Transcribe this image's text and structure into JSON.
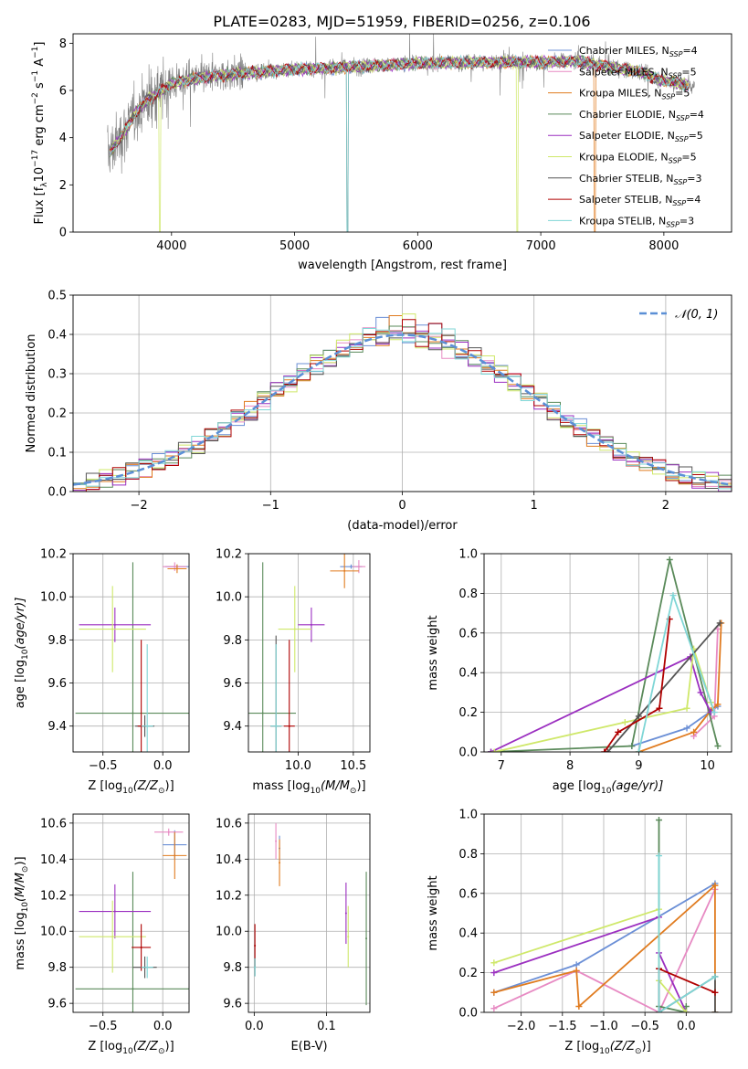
{
  "figure_title": "PLATE=0283, MJD=51959, FIBERID=0256, z=0.106",
  "colors": {
    "Chabrier MILES": "#6b8fd6",
    "Salpeter MILES": "#e78ac3",
    "Kroupa MILES": "#e07b1f",
    "Chabrier ELODIE": "#5a8a5a",
    "Salpeter ELODIE": "#9b2fc0",
    "Kroupa ELODIE": "#cfe86a",
    "Chabrier STELIB": "#555555",
    "Salpeter STELIB": "#b00000",
    "Kroupa STELIB": "#7fd6d6",
    "normal_curve": "#5b8fd6",
    "grid": "#b0b0b0"
  },
  "chart_data": [
    {
      "id": "spectrum",
      "type": "line",
      "xlabel": "wavelength [Angstrom, rest frame]",
      "ylabel": "Flux [f",
      "ylabel_sub": "λ",
      "ylabel_rest": "10",
      "ylabel_sup1": "−17",
      "ylabel_rest2": " erg cm",
      "ylabel_sup2": "−2",
      "ylabel_rest3": " s",
      "ylabel_sup3": "−1",
      "ylabel_rest4": " A",
      "ylabel_sup4": "−1",
      "ylabel_end": "]",
      "xlim": [
        3200,
        8550
      ],
      "ylim": [
        0,
        8.4
      ],
      "xticks": [
        "4000",
        "5000",
        "6000",
        "7000",
        "8000"
      ],
      "yticks": [
        "0",
        "2",
        "4",
        "6",
        "8"
      ],
      "legend_position": "top-right",
      "legend": [
        {
          "name": "Chabrier MILES, N",
          "sub": "SSP",
          "val": "=4"
        },
        {
          "name": "Salpeter MILES, N",
          "sub": "SSP",
          "val": "=5"
        },
        {
          "name": "Kroupa MILES, N",
          "sub": "SSP",
          "val": "=5"
        },
        {
          "name": "Chabrier ELODIE, N",
          "sub": "SSP",
          "val": "=4"
        },
        {
          "name": "Salpeter ELODIE, N",
          "sub": "SSP",
          "val": "=5"
        },
        {
          "name": "Kroupa ELODIE, N",
          "sub": "SSP",
          "val": "=5"
        },
        {
          "name": "Chabrier STELIB, N",
          "sub": "SSP",
          "val": "=3"
        },
        {
          "name": "Salpeter STELIB, N",
          "sub": "SSP",
          "val": "=4"
        },
        {
          "name": "Kroupa STELIB, N",
          "sub": "SSP",
          "val": "=3"
        }
      ],
      "continuum": [
        [
          3500,
          3.4
        ],
        [
          3600,
          4.1
        ],
        [
          3700,
          5.0
        ],
        [
          3800,
          5.6
        ],
        [
          3900,
          5.9
        ],
        [
          4000,
          6.3
        ],
        [
          4200,
          6.5
        ],
        [
          4500,
          6.7
        ],
        [
          5000,
          6.9
        ],
        [
          5500,
          7.0
        ],
        [
          6000,
          7.15
        ],
        [
          6500,
          7.2
        ],
        [
          7000,
          7.2
        ],
        [
          7300,
          7.25
        ],
        [
          7500,
          7.05
        ],
        [
          7800,
          6.8
        ],
        [
          8000,
          6.4
        ],
        [
          8250,
          6.2
        ]
      ]
    },
    {
      "id": "residual_hist",
      "type": "bar",
      "xlabel": "(data-model)/error",
      "ylabel": "Normed distribution",
      "xlim": [
        -2.5,
        2.5
      ],
      "ylim": [
        0,
        0.5
      ],
      "xticks": [
        "−2",
        "−1",
        "0",
        "1",
        "2"
      ],
      "yticks": [
        "0.0",
        "0.1",
        "0.2",
        "0.3",
        "0.4",
        "0.5"
      ],
      "legend_position": "top-right",
      "legend_label": "𝒩(0, 1)",
      "bin_width": 0.1,
      "hist_peak_values": [
        0.47,
        0.47,
        0.48,
        0.47,
        0.45,
        0.44,
        0.42
      ]
    },
    {
      "id": "age_vs_Z",
      "type": "scatter",
      "xlabel": "Z [log",
      "xlabel_sub": "10",
      "xlabel_rest": "(Z/Z",
      "xlabel_sub2": "⊙",
      "xlabel_end": ")]",
      "ylabel": "age  [log",
      "ylabel_sub": "10",
      "ylabel_rest": "(age/yr)]",
      "xlim": [
        -0.75,
        0.22
      ],
      "ylim": [
        9.28,
        10.2
      ],
      "xticks": [
        "−0.5",
        "0.0"
      ],
      "yticks": [
        "9.4",
        "9.6",
        "9.8",
        "10.0",
        "10.2"
      ],
      "points": [
        {
          "series": "Chabrier MILES",
          "x": 0.12,
          "y": 10.14,
          "xerr": 0.1,
          "yerr": 0.01
        },
        {
          "series": "Salpeter MILES",
          "x": 0.1,
          "y": 10.14,
          "xerr": 0.1,
          "yerr": 0.02
        },
        {
          "series": "Kroupa MILES",
          "x": 0.12,
          "y": 10.13,
          "xerr": 0.08,
          "yerr": 0.02
        },
        {
          "series": "Chabrier ELODIE",
          "x": -0.25,
          "y": 9.46,
          "xerr": 0.48,
          "yerr": 0.7
        },
        {
          "series": "Salpeter ELODIE",
          "x": -0.4,
          "y": 9.87,
          "xerr": 0.3,
          "yerr": 0.08
        },
        {
          "series": "Kroupa ELODIE",
          "x": -0.42,
          "y": 9.85,
          "xerr": 0.28,
          "yerr": 0.2
        },
        {
          "series": "Chabrier STELIB",
          "x": -0.15,
          "y": 9.4,
          "xerr": 0.08,
          "yerr": 0.05
        },
        {
          "series": "Salpeter STELIB",
          "x": -0.18,
          "y": 9.4,
          "xerr": 0.03,
          "yerr": 0.4
        },
        {
          "series": "Kroupa STELIB",
          "x": -0.13,
          "y": 9.4,
          "xerr": 0.05,
          "yerr": 0.38
        }
      ]
    },
    {
      "id": "age_vs_mass",
      "type": "scatter",
      "xlabel": "mass [log",
      "xlabel_sub": "10",
      "xlabel_rest": "(M/M",
      "xlabel_sub2": "⊙",
      "xlabel_end": ")]",
      "xlim": [
        9.55,
        10.65
      ],
      "ylim": [
        9.28,
        10.2
      ],
      "xticks": [
        "10.0",
        "10.5"
      ],
      "yticks": [
        "9.4",
        "9.6",
        "9.8",
        "10.0",
        "10.2"
      ],
      "points": [
        {
          "series": "Chabrier MILES",
          "x": 10.48,
          "y": 10.14,
          "xerr": 0.1,
          "yerr": 0.01
        },
        {
          "series": "Salpeter MILES",
          "x": 10.55,
          "y": 10.14,
          "xerr": 0.06,
          "yerr": 0.03
        },
        {
          "series": "Kroupa MILES",
          "x": 10.42,
          "y": 10.12,
          "xerr": 0.13,
          "yerr": 0.08
        },
        {
          "series": "Chabrier ELODIE",
          "x": 9.68,
          "y": 9.46,
          "xerr": 0.3,
          "yerr": 0.7
        },
        {
          "series": "Salpeter ELODIE",
          "x": 10.12,
          "y": 9.87,
          "xerr": 0.12,
          "yerr": 0.08
        },
        {
          "series": "Kroupa ELODIE",
          "x": 9.97,
          "y": 9.85,
          "xerr": 0.15,
          "yerr": 0.2
        },
        {
          "series": "Chabrier STELIB",
          "x": 9.8,
          "y": 9.4,
          "xerr": 0.05,
          "yerr": 0.42
        },
        {
          "series": "Salpeter STELIB",
          "x": 9.92,
          "y": 9.4,
          "xerr": 0.05,
          "yerr": 0.4
        },
        {
          "series": "Kroupa STELIB",
          "x": 9.8,
          "y": 9.4,
          "xerr": 0.05,
          "yerr": 0.38
        }
      ]
    },
    {
      "id": "weight_vs_age",
      "type": "line",
      "xlabel": "age  [log",
      "xlabel_sub": "10",
      "xlabel_rest": "(age/yr)]",
      "ylabel": "mass weight",
      "xlim": [
        6.75,
        10.35
      ],
      "ylim": [
        0,
        1.0
      ],
      "xticks": [
        "7",
        "8",
        "9",
        "10"
      ],
      "yticks": [
        "0.0",
        "0.2",
        "0.4",
        "0.6",
        "0.8",
        "1.0"
      ],
      "series": [
        {
          "name": "Chabrier MILES",
          "x": [
            8.9,
            9.7,
            10.15
          ],
          "y": [
            0.03,
            0.12,
            0.23
          ]
        },
        {
          "name": "Salpeter MILES",
          "x": [
            9.8,
            10.1,
            10.15
          ],
          "y": [
            0.08,
            0.18,
            0.62
          ]
        },
        {
          "name": "Kroupa MILES",
          "x": [
            9.0,
            9.8,
            10.05,
            10.15,
            10.2
          ],
          "y": [
            0.0,
            0.1,
            0.21,
            0.24,
            0.65
          ]
        },
        {
          "name": "Chabrier ELODIE",
          "x": [
            6.85,
            8.9,
            9.45,
            10.15
          ],
          "y": [
            0.0,
            0.03,
            0.97,
            0.03
          ]
        },
        {
          "name": "Salpeter ELODIE",
          "x": [
            6.85,
            9.75,
            9.9,
            10.05
          ],
          "y": [
            0.0,
            0.48,
            0.3,
            0.2
          ]
        },
        {
          "name": "Kroupa ELODIE",
          "x": [
            6.9,
            8.8,
            9.7,
            9.8,
            10.05
          ],
          "y": [
            0.0,
            0.15,
            0.22,
            0.52,
            0.25
          ]
        },
        {
          "name": "Chabrier STELIB",
          "x": [
            8.55,
            9.0,
            10.18
          ],
          "y": [
            0.0,
            0.18,
            0.65
          ]
        },
        {
          "name": "Salpeter STELIB",
          "x": [
            8.5,
            8.7,
            9.3,
            9.45
          ],
          "y": [
            0.0,
            0.1,
            0.22,
            0.67
          ]
        },
        {
          "name": "Kroupa STELIB",
          "x": [
            9.0,
            9.5,
            10.1
          ],
          "y": [
            0.0,
            0.79,
            0.2
          ]
        }
      ]
    },
    {
      "id": "mass_vs_Z",
      "type": "scatter",
      "xlabel": "Z [log",
      "xlabel_sub": "10",
      "xlabel_rest": "(Z/Z",
      "xlabel_sub2": "⊙",
      "xlabel_end": ")]",
      "ylabel": "mass [log",
      "ylabel_sub": "10",
      "ylabel_rest": "(M/M",
      "ylabel_sub2": "⊙",
      "ylabel_end": ")]",
      "xlim": [
        -0.75,
        0.22
      ],
      "ylim": [
        9.55,
        10.65
      ],
      "xticks": [
        "−0.5",
        "0.0"
      ],
      "yticks": [
        "9.6",
        "9.8",
        "10.0",
        "10.2",
        "10.4",
        "10.6"
      ],
      "points": [
        {
          "series": "Chabrier MILES",
          "x": 0.1,
          "y": 10.48,
          "xerr": 0.1,
          "yerr": 0.08
        },
        {
          "series": "Salpeter MILES",
          "x": 0.05,
          "y": 10.55,
          "xerr": 0.12,
          "yerr": 0.02
        },
        {
          "series": "Kroupa MILES",
          "x": 0.1,
          "y": 10.42,
          "xerr": 0.1,
          "yerr": 0.13
        },
        {
          "series": "Chabrier ELODIE",
          "x": -0.25,
          "y": 9.68,
          "xerr": 0.48,
          "yerr": 0.65
        },
        {
          "series": "Salpeter ELODIE",
          "x": -0.4,
          "y": 10.11,
          "xerr": 0.3,
          "yerr": 0.15
        },
        {
          "series": "Kroupa ELODIE",
          "x": -0.42,
          "y": 9.97,
          "xerr": 0.28,
          "yerr": 0.2
        },
        {
          "series": "Chabrier STELIB",
          "x": -0.15,
          "y": 9.8,
          "xerr": 0.1,
          "yerr": 0.06
        },
        {
          "series": "Salpeter STELIB",
          "x": -0.18,
          "y": 9.91,
          "xerr": 0.08,
          "yerr": 0.13
        },
        {
          "series": "Kroupa STELIB",
          "x": -0.13,
          "y": 9.8,
          "xerr": 0.05,
          "yerr": 0.06
        }
      ]
    },
    {
      "id": "mass_vs_ebv",
      "type": "scatter",
      "xlabel": "E(B-V)",
      "xlim": [
        -0.008,
        0.16
      ],
      "ylim": [
        9.55,
        10.65
      ],
      "xticks": [
        "0.0",
        "0.1"
      ],
      "yticks": [
        "9.6",
        "9.8",
        "10.0",
        "10.2",
        "10.4",
        "10.6"
      ],
      "points": [
        {
          "series": "Chabrier MILES",
          "x": 0.035,
          "y": 10.46,
          "xerr": 0.0,
          "yerr": 0.07
        },
        {
          "series": "Salpeter MILES",
          "x": 0.03,
          "y": 10.5,
          "xerr": 0.0,
          "yerr": 0.1
        },
        {
          "series": "Kroupa MILES",
          "x": 0.035,
          "y": 10.38,
          "xerr": 0.0,
          "yerr": 0.13
        },
        {
          "series": "Chabrier ELODIE",
          "x": 0.155,
          "y": 9.96,
          "xerr": 0.0,
          "yerr": 0.37
        },
        {
          "series": "Salpeter ELODIE",
          "x": 0.127,
          "y": 10.1,
          "xerr": 0.0,
          "yerr": 0.17
        },
        {
          "series": "Kroupa ELODIE",
          "x": 0.13,
          "y": 9.97,
          "xerr": 0.0,
          "yerr": 0.17
        },
        {
          "series": "Chabrier STELIB",
          "x": 0.001,
          "y": 9.8,
          "xerr": 0.0,
          "yerr": 0.05
        },
        {
          "series": "Salpeter STELIB",
          "x": 0.001,
          "y": 9.92,
          "xerr": 0.0,
          "yerr": 0.12
        },
        {
          "series": "Kroupa STELIB",
          "x": 0.001,
          "y": 9.8,
          "xerr": 0.0,
          "yerr": 0.05
        }
      ]
    },
    {
      "id": "weight_vs_Z",
      "type": "line",
      "xlabel": "Z [log",
      "xlabel_sub": "10",
      "xlabel_rest": "(Z/Z",
      "xlabel_sub2": "⊙",
      "xlabel_end": ")]",
      "ylabel": "mass weight",
      "xlim": [
        -2.45,
        0.55
      ],
      "ylim": [
        0,
        1.0
      ],
      "xticks": [
        "−2.0",
        "−1.5",
        "−1.0",
        "−0.5",
        "0.0"
      ],
      "yticks": [
        "0.0",
        "0.2",
        "0.4",
        "0.6",
        "0.8",
        "1.0"
      ],
      "series": [
        {
          "name": "Chabrier MILES",
          "x": [
            -2.33,
            -1.33,
            0.35
          ],
          "y": [
            0.1,
            0.24,
            0.65
          ]
        },
        {
          "name": "Salpeter MILES",
          "x": [
            -2.33,
            -1.33,
            -0.33,
            0.35
          ],
          "y": [
            0.02,
            0.21,
            0.0,
            0.62
          ]
        },
        {
          "name": "Kroupa MILES",
          "x": [
            -2.33,
            -1.33,
            -1.3,
            0.35,
            0.35
          ],
          "y": [
            0.1,
            0.21,
            0.03,
            0.64,
            0.0
          ]
        },
        {
          "name": "Chabrier ELODIE",
          "x": [
            -0.33,
            -0.33,
            -0.0,
            -0.0
          ],
          "y": [
            0.97,
            0.03,
            0.0,
            0.03
          ]
        },
        {
          "name": "Salpeter ELODIE",
          "x": [
            -2.33,
            -0.33,
            -0.33,
            -0.0
          ],
          "y": [
            0.2,
            0.48,
            0.3,
            0.0
          ]
        },
        {
          "name": "Kroupa ELODIE",
          "x": [
            -2.33,
            -0.33,
            -0.33,
            -0.0
          ],
          "y": [
            0.25,
            0.52,
            0.16,
            0.0
          ]
        },
        {
          "name": "Chabrier STELIB",
          "x": [
            -0.33,
            0.35,
            0.35
          ],
          "y": [
            0.0,
            0.18,
            0.0
          ]
        },
        {
          "name": "Salpeter STELIB",
          "x": [
            -0.33,
            -0.33,
            0.35
          ],
          "y": [
            0.0,
            0.22,
            0.1
          ]
        },
        {
          "name": "Kroupa STELIB",
          "x": [
            -0.33,
            -0.33,
            0.35
          ],
          "y": [
            0.79,
            0.0,
            0.18
          ]
        }
      ]
    }
  ]
}
